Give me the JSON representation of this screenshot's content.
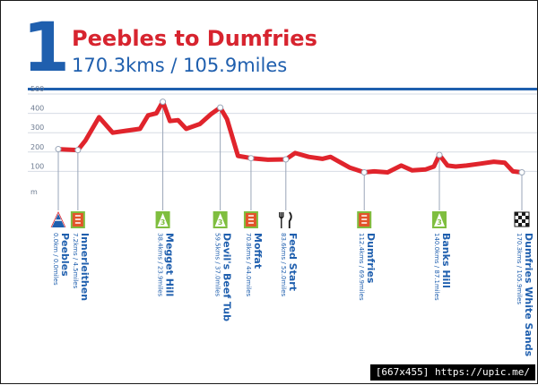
{
  "header": {
    "stage_number": "1",
    "title": "Peebles to Dumfries",
    "distance": "170.3kms / 105.9miles"
  },
  "watermark": "[667x455] https://upic.me/",
  "colors": {
    "profile_line": "#e0242c",
    "accent_blue": "#1f5fae",
    "climb_green": "#7fbe3f",
    "feed_orange": "#e2542a",
    "grid": "#d6dbe4"
  },
  "chart_data": {
    "type": "line",
    "title": "Peebles to Dumfries",
    "xlabel": "",
    "ylabel": "m",
    "x_unit": "km",
    "xlim": [
      0,
      170.3
    ],
    "ylim": [
      0,
      500
    ],
    "yticks": [
      100,
      200,
      300,
      400,
      500
    ],
    "ytick_labels": [
      "100",
      "200",
      "300",
      "400",
      "500"
    ],
    "y_unit_label": "m",
    "grid": true,
    "series": [
      {
        "points": [
          [
            0,
            215
          ],
          [
            7.2,
            210
          ],
          [
            10,
            260
          ],
          [
            15,
            380
          ],
          [
            20,
            300
          ],
          [
            25,
            310
          ],
          [
            30,
            320
          ],
          [
            33,
            390
          ],
          [
            36,
            400
          ],
          [
            38.4,
            460
          ],
          [
            41,
            360
          ],
          [
            44,
            365
          ],
          [
            47,
            320
          ],
          [
            52,
            345
          ],
          [
            56,
            395
          ],
          [
            59.5,
            430
          ],
          [
            62,
            370
          ],
          [
            66,
            180
          ],
          [
            71,
            168
          ],
          [
            77,
            160
          ],
          [
            83.6,
            162
          ],
          [
            87,
            195
          ],
          [
            92,
            175
          ],
          [
            97,
            165
          ],
          [
            100,
            175
          ],
          [
            107,
            120
          ],
          [
            112.4,
            95
          ],
          [
            116,
            100
          ],
          [
            121,
            95
          ],
          [
            126,
            130
          ],
          [
            130,
            105
          ],
          [
            135,
            110
          ],
          [
            138,
            125
          ],
          [
            140,
            185
          ],
          [
            143,
            130
          ],
          [
            146,
            125
          ],
          [
            150,
            130
          ],
          [
            155,
            140
          ],
          [
            160,
            150
          ],
          [
            164,
            145
          ],
          [
            167,
            100
          ],
          [
            170.3,
            95
          ]
        ]
      }
    ],
    "waypoints": [
      {
        "name": "Peebles",
        "dist": "0.0km / 0.0miles",
        "km": 0,
        "elev": 215,
        "icon": "start-flag-icon"
      },
      {
        "name": "Innerleithen",
        "dist": "7.2kms / 4.5miles",
        "km": 7.2,
        "elev": 210,
        "icon": "sprint-icon"
      },
      {
        "name": "Megget Hill",
        "dist": "38.4kms / 23.9miles",
        "km": 38.4,
        "elev": 460,
        "icon": "climb-icon",
        "category": "3"
      },
      {
        "name": "Devil's Beef Tub",
        "dist": "59.5kms / 37.0miles",
        "km": 59.5,
        "elev": 430,
        "icon": "climb-icon",
        "category": "3"
      },
      {
        "name": "Moffat",
        "dist": "70.8kms / 44.0miles",
        "km": 70.8,
        "elev": 168,
        "icon": "sprint-icon"
      },
      {
        "name": "Feed Start",
        "dist": "83.6kms / 52.0miles",
        "km": 83.6,
        "elev": 162,
        "icon": "feed-icon"
      },
      {
        "name": "Dumfries",
        "dist": "112.4kms / 69.9miles",
        "km": 112.4,
        "elev": 95,
        "icon": "sprint-icon"
      },
      {
        "name": "Banks Hill",
        "dist": "140.0kms / 87.1miles",
        "km": 140.0,
        "elev": 185,
        "icon": "climb-icon",
        "category": "3"
      },
      {
        "name": "Dumfries White Sands",
        "dist": "170.3kms / 105.9miles",
        "km": 170.3,
        "elev": 95,
        "icon": "finish-flag-icon"
      }
    ]
  }
}
